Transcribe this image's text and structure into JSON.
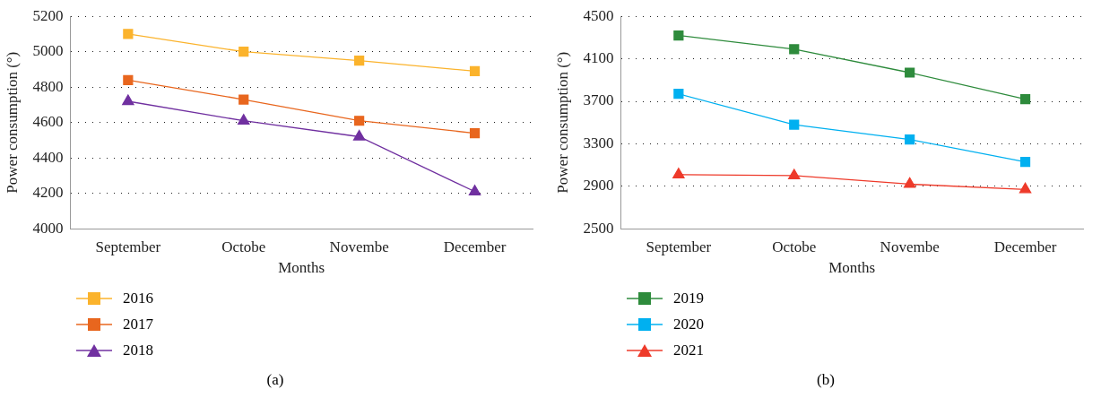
{
  "chart_data": [
    {
      "type": "line",
      "xlabel": "Months",
      "ylabel": "Power consumption (°)",
      "categories": [
        "September",
        "Octobe",
        "Novembe",
        "December"
      ],
      "ylim": [
        4000,
        5200
      ],
      "yticks": [
        4000,
        4200,
        4400,
        4600,
        4800,
        5000,
        5200
      ],
      "grid": "y",
      "legend": "bottom left",
      "annotations": [
        "(a)"
      ],
      "series": [
        {
          "name": "2016",
          "color": "#fbb32c",
          "marker": "square",
          "values": [
            5100,
            5000,
            4950,
            4890
          ]
        },
        {
          "name": "2017",
          "color": "#e8661e",
          "marker": "square",
          "values": [
            4840,
            4730,
            4610,
            4540
          ]
        },
        {
          "name": "2018",
          "color": "#7030a0",
          "marker": "triangle",
          "values": [
            4720,
            4610,
            4520,
            4210
          ]
        }
      ]
    },
    {
      "type": "line",
      "xlabel": "Months",
      "ylabel": "Power consumption (°)",
      "categories": [
        "September",
        "Octobe",
        "Novembe",
        "December"
      ],
      "ylim": [
        2500,
        4500
      ],
      "yticks": [
        2500,
        2900,
        3300,
        3700,
        4100,
        4500
      ],
      "grid": "y",
      "legend": "bottom left",
      "annotations": [
        "(b)"
      ],
      "series": [
        {
          "name": "2019",
          "color": "#2e8b3c",
          "marker": "square",
          "values": [
            4320,
            4190,
            3970,
            3720
          ]
        },
        {
          "name": "2020",
          "color": "#00b0f0",
          "marker": "square",
          "values": [
            3770,
            3480,
            3340,
            3130
          ]
        },
        {
          "name": "2021",
          "color": "#ee3a2a",
          "marker": "triangle",
          "values": [
            3010,
            3000,
            2920,
            2870
          ]
        }
      ]
    }
  ]
}
